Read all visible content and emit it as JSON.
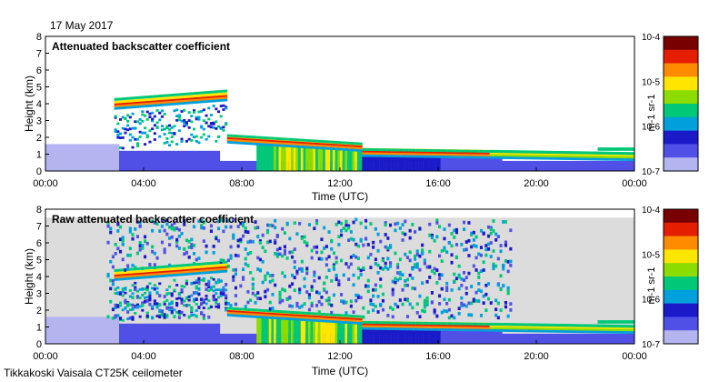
{
  "date": "17 May 2017",
  "footer": "Tikkakoski Vaisala CT25K ceilometer",
  "colors": {
    "background_noise": "#dcdcdc",
    "colormap": [
      "#b4b4f0",
      "#5050e6",
      "#1a1ac8",
      "#00a0dc",
      "#00c878",
      "#8cdc00",
      "#ffe600",
      "#ff8c00",
      "#e61e00",
      "#780000"
    ]
  },
  "chart_data": [
    {
      "type": "heatmap",
      "title": "Attenuated backscatter coefficient",
      "xlabel": "Time (UTC)",
      "ylabel": "Height (km)",
      "x_ticks": [
        "00:00",
        "04:00",
        "08:00",
        "12:00",
        "16:00",
        "20:00",
        "00:00"
      ],
      "y_ticks": [
        "0",
        "1",
        "2",
        "3",
        "4",
        "5",
        "6",
        "7",
        "8"
      ],
      "xlim_hours": [
        0,
        24
      ],
      "ylim_km": [
        0,
        8
      ],
      "colorbar": {
        "label": "m-1 sr-1",
        "scale": "log",
        "range": [
          1e-07,
          0.0001
        ],
        "tick_labels": [
          "10-7",
          "10-6",
          "10-5",
          "10-4"
        ]
      },
      "features": {
        "elevated_cloud_layer": {
          "time_hours": [
            2.8,
            7.3
          ],
          "height_km": [
            3.8,
            4.3
          ]
        },
        "descending_cloud_base": {
          "time_hours": [
            7.3,
            12.8
          ],
          "height_km": [
            2.0,
            1.5
          ]
        },
        "low_cloud_base": {
          "time_hours": [
            12.8,
            24
          ],
          "height_km": [
            1.0,
            0.75
          ]
        },
        "late_layer": {
          "time_hours": [
            22.5,
            24
          ],
          "height_km": [
            1.3,
            1.4
          ]
        },
        "noise_background": false
      }
    },
    {
      "type": "heatmap",
      "title": "Raw attenuated backscatter coefficient",
      "xlabel": "Time (UTC)",
      "ylabel": "Height (km)",
      "x_ticks": [
        "00:00",
        "04:00",
        "08:00",
        "12:00",
        "16:00",
        "20:00",
        "00:00"
      ],
      "y_ticks": [
        "0",
        "1",
        "2",
        "3",
        "4",
        "5",
        "6",
        "7",
        "8"
      ],
      "xlim_hours": [
        0,
        24
      ],
      "ylim_km": [
        0,
        8
      ],
      "colorbar": {
        "label": "m-1 sr-1",
        "scale": "log",
        "range": [
          1e-07,
          0.0001
        ],
        "tick_labels": [
          "10-7",
          "10-6",
          "10-5",
          "10-4"
        ]
      },
      "features": {
        "elevated_cloud_layer": {
          "time_hours": [
            2.8,
            7.3
          ],
          "height_km": [
            3.9,
            4.4
          ]
        },
        "descending_cloud_base": {
          "time_hours": [
            7.3,
            12.8
          ],
          "height_km": [
            2.0,
            1.5
          ]
        },
        "low_cloud_base": {
          "time_hours": [
            12.8,
            24
          ],
          "height_km": [
            1.0,
            0.75
          ]
        },
        "late_layer": {
          "time_hours": [
            22.5,
            24
          ],
          "height_km": [
            1.3,
            1.4
          ]
        },
        "noise_background": true,
        "noise_top_km": 7.5
      }
    }
  ]
}
